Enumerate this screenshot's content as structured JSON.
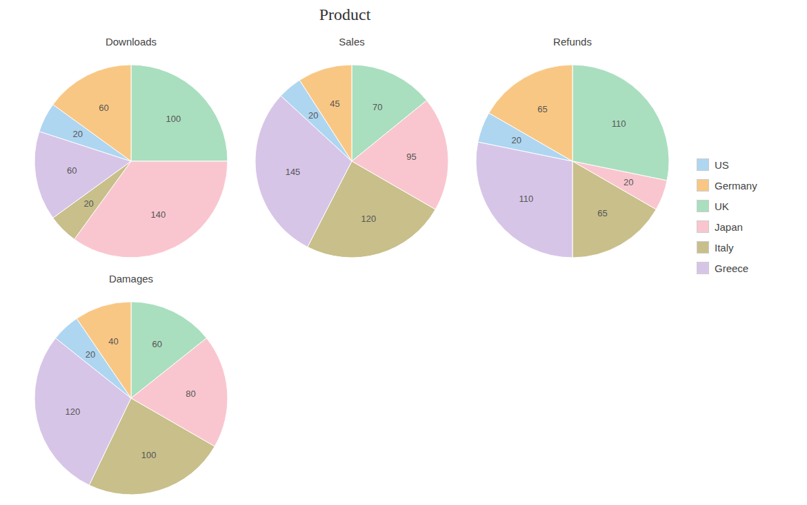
{
  "title": "Product",
  "legend": "right",
  "series": [
    {
      "name": "US",
      "color": "#aed6f1"
    },
    {
      "name": "Germany",
      "color": "#f9c784"
    },
    {
      "name": "UK",
      "color": "#a9dfbf"
    },
    {
      "name": "Japan",
      "color": "#f9c6cf"
    },
    {
      "name": "Italy",
      "color": "#c8bf8a"
    },
    {
      "name": "Greece",
      "color": "#d7c5e8"
    }
  ],
  "chart_data": [
    {
      "type": "pie",
      "title": "Downloads",
      "categories": [
        "UK",
        "Japan",
        "Italy",
        "Greece",
        "US",
        "Germany"
      ],
      "values": [
        100,
        140,
        20,
        60,
        20,
        60
      ],
      "data_labels": true
    },
    {
      "type": "pie",
      "title": "Sales",
      "categories": [
        "UK",
        "Japan",
        "Italy",
        "Greece",
        "US",
        "Germany"
      ],
      "values": [
        70,
        95,
        120,
        145,
        20,
        45
      ],
      "data_labels": true
    },
    {
      "type": "pie",
      "title": "Refunds",
      "categories": [
        "UK",
        "Japan",
        "Italy",
        "Greece",
        "US",
        "Germany"
      ],
      "values": [
        110,
        20,
        65,
        110,
        20,
        65
      ],
      "data_labels": true
    },
    {
      "type": "pie",
      "title": "Damages",
      "categories": [
        "UK",
        "Japan",
        "Italy",
        "Greece",
        "US",
        "Germany"
      ],
      "values": [
        60,
        80,
        100,
        120,
        20,
        40
      ],
      "data_labels": true
    }
  ]
}
